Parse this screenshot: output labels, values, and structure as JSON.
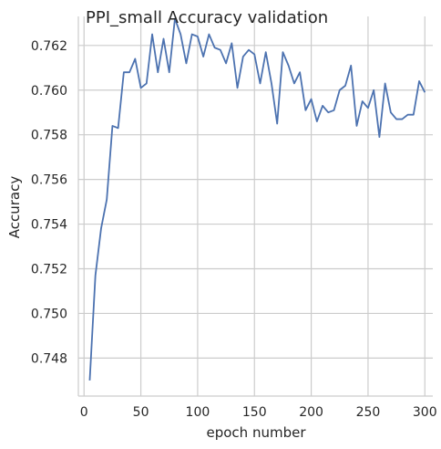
{
  "chart_data": {
    "type": "line",
    "title": "PPI_small Accuracy validation",
    "xlabel": "epoch number",
    "ylabel": "Accuracy",
    "xlim": [
      -5,
      307
    ],
    "ylim": [
      0.7463,
      0.7633
    ],
    "xticks": [
      0,
      50,
      100,
      150,
      200,
      250,
      300
    ],
    "yticks": [
      0.748,
      0.75,
      0.752,
      0.754,
      0.756,
      0.758,
      0.76,
      0.762
    ],
    "ytick_labels": [
      "0.748",
      "0.750",
      "0.752",
      "0.754",
      "0.756",
      "0.758",
      "0.760",
      "0.762"
    ],
    "grid": true,
    "color": "#4c72b0",
    "x": [
      5,
      10,
      15,
      20,
      25,
      30,
      35,
      40,
      45,
      50,
      55,
      60,
      65,
      70,
      75,
      80,
      85,
      90,
      95,
      100,
      105,
      110,
      115,
      120,
      125,
      130,
      135,
      140,
      145,
      150,
      155,
      160,
      165,
      170,
      175,
      180,
      185,
      190,
      195,
      200,
      205,
      210,
      215,
      220,
      225,
      230,
      235,
      240,
      245,
      250,
      255,
      260,
      265,
      270,
      275,
      280,
      285,
      290,
      295,
      300
    ],
    "y": [
      0.747,
      0.7517,
      0.7538,
      0.7551,
      0.7584,
      0.7583,
      0.7608,
      0.7608,
      0.7614,
      0.7601,
      0.7603,
      0.7625,
      0.7608,
      0.7623,
      0.7608,
      0.7632,
      0.7625,
      0.7612,
      0.7625,
      0.7624,
      0.7615,
      0.7625,
      0.7619,
      0.7618,
      0.7612,
      0.7621,
      0.7601,
      0.7615,
      0.7618,
      0.7616,
      0.7603,
      0.7617,
      0.7603,
      0.7585,
      0.7617,
      0.7611,
      0.7603,
      0.7608,
      0.7591,
      0.7596,
      0.7586,
      0.7593,
      0.759,
      0.7591,
      0.76,
      0.7602,
      0.7611,
      0.7584,
      0.7595,
      0.7592,
      0.76,
      0.7579,
      0.7603,
      0.759,
      0.7587,
      0.7587,
      0.7589,
      0.7589,
      0.7604,
      0.7599
    ]
  }
}
